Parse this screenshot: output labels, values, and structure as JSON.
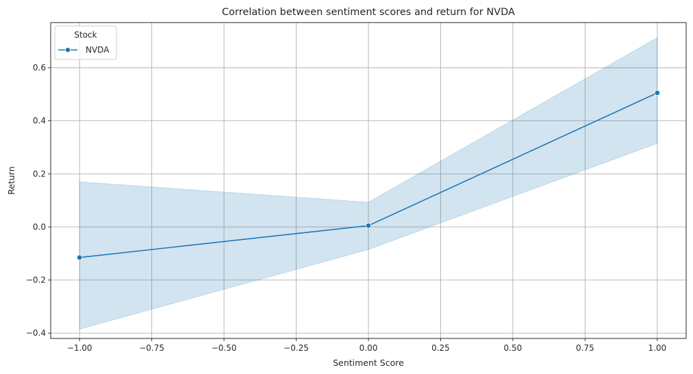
{
  "chart_data": {
    "type": "line",
    "title": "Correlation between sentiment scores and return for NVDA",
    "xlabel": "Sentiment Score",
    "ylabel": "Return",
    "xlim": [
      -1.1,
      1.1
    ],
    "ylim": [
      -0.42,
      0.77
    ],
    "x_ticks": [
      -1.0,
      -0.75,
      -0.5,
      -0.25,
      0.0,
      0.25,
      0.5,
      0.75,
      1.0
    ],
    "x_tick_labels": [
      "−1.00",
      "−0.75",
      "−0.50",
      "−0.25",
      "0.00",
      "0.25",
      "0.50",
      "0.75",
      "1.00"
    ],
    "y_ticks": [
      -0.4,
      -0.2,
      0.0,
      0.2,
      0.4,
      0.6
    ],
    "y_tick_labels": [
      "−0.4",
      "−0.2",
      "0.0",
      "0.2",
      "0.4",
      "0.6"
    ],
    "grid": true,
    "legend": {
      "title": "Stock",
      "placement": "top-left"
    },
    "series": [
      {
        "name": "NVDA",
        "color": "#1f77b4",
        "marker": "circle",
        "x": [
          -1.0,
          0.0,
          1.0
        ],
        "y": [
          -0.115,
          0.005,
          0.505
        ],
        "ci_lower": [
          -0.385,
          -0.085,
          0.315
        ],
        "ci_upper": [
          0.17,
          0.093,
          0.713
        ]
      }
    ]
  }
}
